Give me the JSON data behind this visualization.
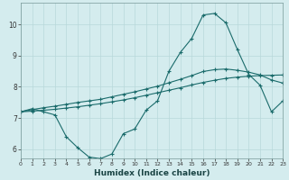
{
  "xlabel": "Humidex (Indice chaleur)",
  "bg_color": "#d4ecee",
  "grid_color": "#b8d8da",
  "line_color": "#1a6b6b",
  "xmin": 0,
  "xmax": 23,
  "ymin": 5.7,
  "ymax": 10.7,
  "yticks": [
    6,
    7,
    8,
    9,
    10
  ],
  "xticks": [
    0,
    1,
    2,
    3,
    4,
    5,
    6,
    7,
    8,
    9,
    10,
    11,
    12,
    13,
    14,
    15,
    16,
    17,
    18,
    19,
    20,
    21,
    22,
    23
  ],
  "series_jagged": {
    "x": [
      0,
      1,
      2,
      3,
      4,
      5,
      6,
      7,
      8,
      9,
      10,
      11,
      12,
      13,
      14,
      15,
      16,
      17,
      18,
      19,
      20,
      21,
      22,
      23
    ],
    "y": [
      7.2,
      7.3,
      7.2,
      7.1,
      6.4,
      6.05,
      5.75,
      5.7,
      5.85,
      6.5,
      6.65,
      7.25,
      7.55,
      8.5,
      9.1,
      9.55,
      10.3,
      10.35,
      10.05,
      9.2,
      8.4,
      8.05,
      7.2,
      7.55
    ]
  },
  "series_smooth1": {
    "x": [
      0,
      1,
      2,
      3,
      4,
      5,
      6,
      7,
      8,
      9,
      10,
      11,
      12,
      13,
      14,
      15,
      16,
      17,
      18,
      19,
      20,
      21,
      22,
      23
    ],
    "y": [
      7.2,
      7.27,
      7.33,
      7.38,
      7.44,
      7.5,
      7.55,
      7.6,
      7.68,
      7.76,
      7.84,
      7.93,
      8.02,
      8.13,
      8.24,
      8.36,
      8.49,
      8.55,
      8.57,
      8.53,
      8.47,
      8.38,
      8.22,
      8.12
    ]
  },
  "series_smooth2": {
    "x": [
      0,
      1,
      2,
      3,
      4,
      5,
      6,
      7,
      8,
      9,
      10,
      11,
      12,
      13,
      14,
      15,
      16,
      17,
      18,
      19,
      20,
      21,
      22,
      23
    ],
    "y": [
      7.2,
      7.22,
      7.25,
      7.28,
      7.32,
      7.36,
      7.41,
      7.46,
      7.52,
      7.58,
      7.65,
      7.73,
      7.81,
      7.89,
      7.97,
      8.06,
      8.14,
      8.21,
      8.27,
      8.31,
      8.34,
      8.36,
      8.37,
      8.38
    ]
  }
}
